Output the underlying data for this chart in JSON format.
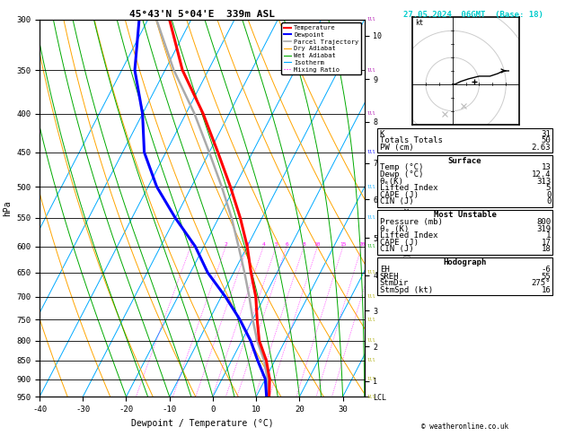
{
  "title": "45°43'N 5°04'E  339m ASL",
  "date_str": "27.05.2024  06GMT  (Base: 18)",
  "xlabel": "Dewpoint / Temperature (°C)",
  "ylabel_left": "hPa",
  "temp_color": "#ff0000",
  "dewp_color": "#0000ff",
  "parcel_color": "#aaaaaa",
  "dry_adiabat_color": "#ffa500",
  "wet_adiabat_color": "#00aa00",
  "isotherm_color": "#00aaff",
  "mix_ratio_color": "#ff00ff",
  "pressure_levels": [
    300,
    350,
    400,
    450,
    500,
    550,
    600,
    650,
    700,
    750,
    800,
    850,
    900,
    950
  ],
  "temp_data": {
    "pressure": [
      950,
      900,
      850,
      800,
      750,
      700,
      650,
      600,
      550,
      500,
      450,
      400,
      350,
      300
    ],
    "temperature": [
      13,
      11,
      8,
      4,
      1,
      -2,
      -6,
      -10,
      -15,
      -21,
      -28,
      -36,
      -46,
      -55
    ]
  },
  "dewp_data": {
    "pressure": [
      950,
      900,
      850,
      800,
      750,
      700,
      650,
      600,
      550,
      500,
      450,
      400,
      350,
      300
    ],
    "dewpoint": [
      12.4,
      10,
      6,
      2,
      -3,
      -9,
      -16,
      -22,
      -30,
      -38,
      -45,
      -50,
      -57,
      -62
    ]
  },
  "parcel_data": {
    "pressure": [
      950,
      900,
      850,
      800,
      750,
      700,
      650,
      600,
      550,
      500,
      450,
      400,
      350,
      300
    ],
    "temperature": [
      13,
      10.5,
      7.5,
      3.5,
      0,
      -3.5,
      -7.5,
      -12,
      -17,
      -23,
      -30,
      -38,
      -48,
      -58
    ]
  },
  "mix_ratios": [
    1,
    2,
    3,
    4,
    5,
    6,
    8,
    10,
    15,
    20,
    25
  ],
  "stats": {
    "K": 31,
    "Totals Totals": 50,
    "PW (cm)": "2.63",
    "Temp_C": 13,
    "Dewp_C": 12.4,
    "theta_e_surf": 313,
    "LI_surf": 5,
    "CAPE_surf": 0,
    "CIN_surf": 0,
    "MU_pressure": 800,
    "theta_e_mu": 319,
    "LI_mu": 1,
    "CAPE_mu": 17,
    "CIN_mu": 18,
    "EH": -6,
    "SREH": 55,
    "StmDir": "275°",
    "StmSpd_kt": 16
  },
  "background_color": "#ffffff",
  "skew_factor": 45
}
